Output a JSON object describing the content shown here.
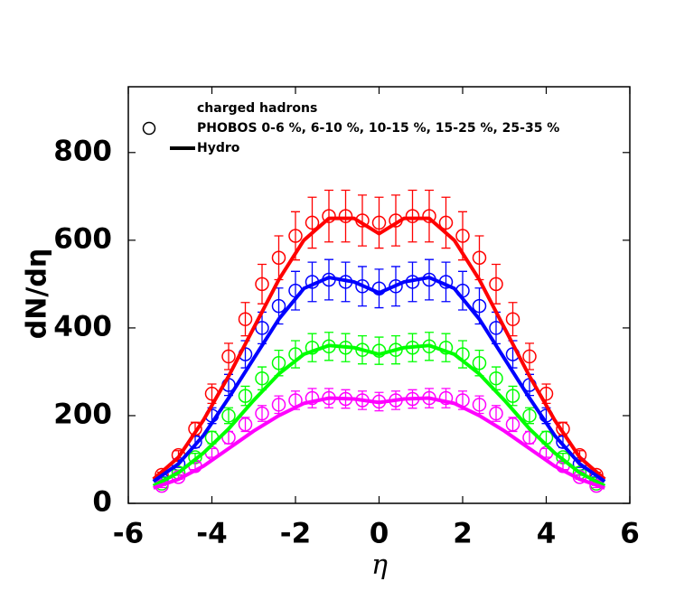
{
  "chart_data": {
    "type": "line",
    "xlabel": "η",
    "ylabel": "dN/dη",
    "xlim": [
      -6,
      6
    ],
    "xticks": [
      -6,
      -4,
      -2,
      0,
      2,
      4,
      6
    ],
    "ylim": [
      0,
      950
    ],
    "yticks": [
      0,
      200,
      400,
      600,
      800
    ],
    "legend": {
      "title": "charged hadrons",
      "corner": "top-left",
      "entries": [
        {
          "label": "PHOBOS 0-6 %, 6-10 %, 10-15 %, 15-25 %, 25-35 %",
          "marker": "circle"
        },
        {
          "label": "Hydro",
          "marker": "line"
        }
      ]
    },
    "series": [
      {
        "marker": "circle",
        "color": "#ff0000",
        "x": [
          -5.2,
          -4.8,
          -4.4,
          -4,
          -3.6,
          -3.2,
          -2.8,
          -2.4,
          -2,
          -1.6,
          -1.2,
          -0.8,
          -0.4,
          0,
          0.4,
          0.8,
          1.2,
          1.6,
          2,
          2.4,
          2.8,
          3.2,
          3.6,
          4,
          4.4,
          4.8,
          5.2
        ],
        "values": [
          65,
          110,
          170,
          250,
          335,
          420,
          500,
          560,
          610,
          640,
          655,
          655,
          645,
          640,
          645,
          655,
          655,
          640,
          610,
          560,
          500,
          420,
          335,
          250,
          170,
          110,
          65
        ],
        "errors": [
          6,
          10,
          15,
          22,
          30,
          38,
          45,
          50,
          55,
          58,
          59,
          59,
          58,
          58,
          58,
          59,
          59,
          58,
          55,
          50,
          45,
          38,
          30,
          22,
          15,
          10,
          6
        ]
      },
      {
        "marker": "circle",
        "color": "#0000ff",
        "x": [
          -5.2,
          -4.8,
          -4.4,
          -4,
          -3.6,
          -3.2,
          -2.8,
          -2.4,
          -2,
          -1.6,
          -1.2,
          -0.8,
          -0.4,
          0,
          0.4,
          0.8,
          1.2,
          1.6,
          2,
          2.4,
          2.8,
          3.2,
          3.6,
          4,
          4.4,
          4.8,
          5.2
        ],
        "values": [
          55,
          90,
          140,
          200,
          270,
          340,
          400,
          450,
          485,
          505,
          510,
          505,
          495,
          490,
          495,
          505,
          510,
          505,
          485,
          450,
          400,
          340,
          270,
          200,
          140,
          90,
          55
        ],
        "errors": [
          5,
          8,
          13,
          18,
          24,
          31,
          36,
          41,
          44,
          45,
          46,
          45,
          45,
          44,
          45,
          45,
          46,
          45,
          44,
          41,
          36,
          31,
          24,
          18,
          13,
          8,
          5
        ]
      },
      {
        "marker": "circle",
        "color": "#00ff00",
        "x": [
          -5.2,
          -4.8,
          -4.4,
          -4,
          -3.6,
          -3.2,
          -2.8,
          -2.4,
          -2,
          -1.6,
          -1.2,
          -0.8,
          -0.4,
          0,
          0.4,
          0.8,
          1.2,
          1.6,
          2,
          2.4,
          2.8,
          3.2,
          3.6,
          4,
          4.4,
          4.8,
          5.2
        ],
        "values": [
          45,
          70,
          105,
          150,
          200,
          245,
          285,
          320,
          340,
          355,
          358,
          355,
          350,
          348,
          350,
          355,
          358,
          355,
          340,
          320,
          285,
          245,
          200,
          150,
          105,
          70,
          45
        ],
        "errors": [
          4,
          6,
          9,
          14,
          18,
          22,
          26,
          29,
          31,
          32,
          32,
          32,
          32,
          31,
          32,
          32,
          32,
          32,
          31,
          29,
          26,
          22,
          18,
          14,
          9,
          6,
          4
        ]
      },
      {
        "marker": "circle",
        "color": "#ff00ff",
        "x": [
          -5.2,
          -4.8,
          -4.4,
          -4,
          -3.6,
          -3.2,
          -2.8,
          -2.4,
          -2,
          -1.6,
          -1.2,
          -0.8,
          -0.4,
          0,
          0.4,
          0.8,
          1.2,
          1.6,
          2,
          2.4,
          2.8,
          3.2,
          3.6,
          4,
          4.4,
          4.8,
          5.2
        ],
        "values": [
          40,
          60,
          85,
          115,
          150,
          180,
          205,
          225,
          235,
          240,
          240,
          238,
          235,
          232,
          235,
          238,
          240,
          240,
          235,
          225,
          205,
          180,
          150,
          115,
          85,
          60,
          40
        ],
        "errors": [
          4,
          5,
          8,
          10,
          14,
          16,
          18,
          20,
          21,
          22,
          22,
          21,
          21,
          21,
          21,
          21,
          22,
          22,
          21,
          20,
          18,
          16,
          14,
          10,
          8,
          5,
          4
        ]
      },
      {
        "marker": "line",
        "color": "#ff0000",
        "x": [
          -5.4,
          -4.8,
          -4.2,
          -3.6,
          -3,
          -2.4,
          -1.8,
          -1.2,
          -0.6,
          0,
          0.6,
          1.2,
          1.8,
          2.4,
          3,
          3.6,
          4.2,
          4.8,
          5.4
        ],
        "values": [
          55,
          105,
          190,
          290,
          400,
          510,
          600,
          650,
          650,
          615,
          650,
          650,
          600,
          510,
          400,
          290,
          190,
          105,
          55
        ]
      },
      {
        "marker": "line",
        "color": "#0000ff",
        "x": [
          -5.4,
          -4.8,
          -4.2,
          -3.6,
          -3,
          -2.4,
          -1.8,
          -1.2,
          -0.6,
          0,
          0.6,
          1.2,
          1.8,
          2.4,
          3,
          3.6,
          4.2,
          4.8,
          5.4
        ],
        "values": [
          50,
          90,
          155,
          240,
          330,
          420,
          490,
          515,
          505,
          480,
          505,
          515,
          490,
          420,
          330,
          240,
          155,
          90,
          50
        ]
      },
      {
        "marker": "line",
        "color": "#00ff00",
        "x": [
          -5.4,
          -4.8,
          -4.2,
          -3.6,
          -3,
          -2.4,
          -1.8,
          -1.2,
          -0.6,
          0,
          0.6,
          1.2,
          1.8,
          2.4,
          3,
          3.6,
          4.2,
          4.8,
          5.4
        ],
        "values": [
          40,
          70,
          115,
          170,
          235,
          295,
          340,
          360,
          355,
          340,
          355,
          360,
          340,
          295,
          235,
          170,
          115,
          70,
          40
        ]
      },
      {
        "marker": "line",
        "color": "#ff00ff",
        "x": [
          -5.4,
          -4.8,
          -4.2,
          -3.6,
          -3,
          -2.4,
          -1.8,
          -1.2,
          -0.6,
          0,
          0.6,
          1.2,
          1.8,
          2.4,
          3,
          3.6,
          4.2,
          4.8,
          5.4
        ],
        "values": [
          35,
          55,
          85,
          125,
          165,
          200,
          228,
          240,
          238,
          230,
          238,
          240,
          228,
          200,
          165,
          125,
          85,
          55,
          35
        ]
      }
    ]
  }
}
